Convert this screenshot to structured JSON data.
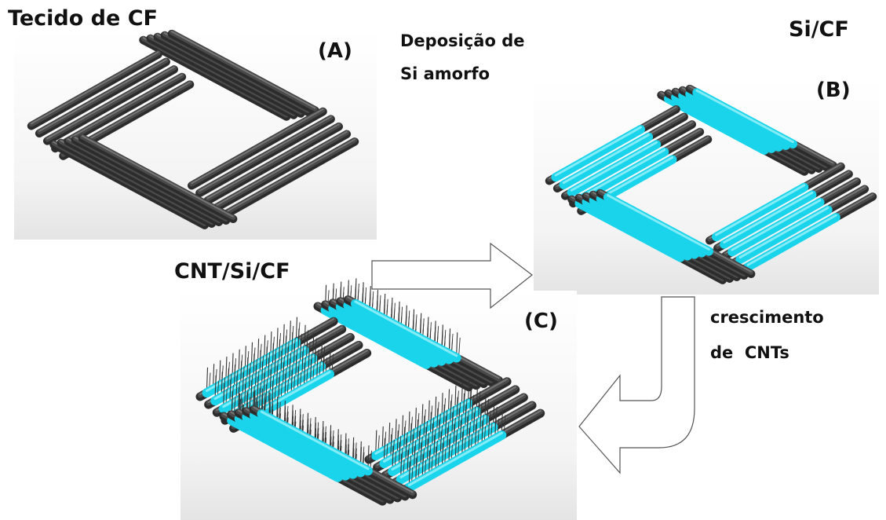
{
  "labels": {
    "fabric_title": "Tecido de CF",
    "panel_a": "(A)",
    "deposition_line1": "Deposição de",
    "deposition_line2": "Si amorfo",
    "si_cf_title": "Si/CF",
    "panel_b": "(B)",
    "cnt_si_cf_title": "CNT/Si/CF",
    "panel_c": "(C)",
    "growth_line1": "crescimento",
    "growth_line2": "de  CNTs"
  },
  "colors": {
    "fiber": "#4a4a4a",
    "fiber_dark": "#2c2c2c",
    "fiber_light": "#8a8a8a",
    "silicon": "#19d4ea",
    "silicon_light": "#9ff3fb",
    "cnt": "#333333",
    "panel_bg_bottom": "#e6e6e6",
    "arrow_stroke": "#555555"
  }
}
